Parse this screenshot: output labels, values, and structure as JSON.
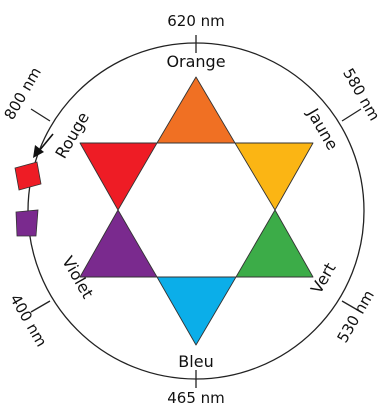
{
  "wavelengths": {
    "top": "620 nm",
    "upper_right": "580 nm",
    "lower_right": "530 nm",
    "bottom": "465 nm",
    "lower_left": "400 nm",
    "upper_left": "800 nm"
  },
  "color_names": {
    "orange": "Orange",
    "jaune": "Jaune",
    "vert": "Vert",
    "bleu": "Bleu",
    "violet": "Violet",
    "rouge": "Rouge"
  },
  "colors": {
    "orange": "#f07023",
    "jaune": "#fbb514",
    "vert": "#3cac48",
    "bleu": "#0baee9",
    "violet": "#7a2a8e",
    "rouge": "#ee1c25",
    "circle": "#222222"
  }
}
